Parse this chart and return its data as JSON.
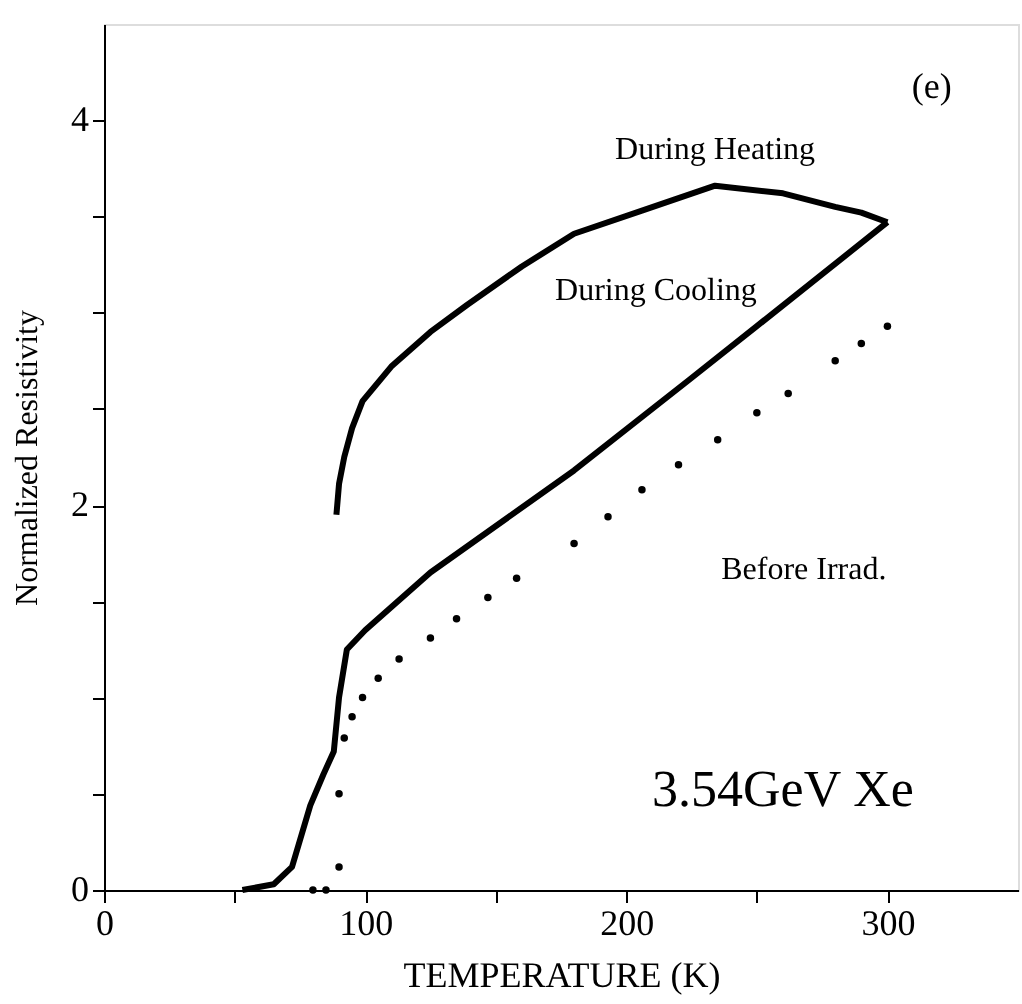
{
  "chart_data": {
    "type": "line",
    "xlabel": "TEMPERATURE (K)",
    "ylabel": "Normalized Resistivity",
    "xlim": [
      0,
      350
    ],
    "xticks": [
      0,
      {
        "value": 50,
        "label": null
      },
      100,
      {
        "value": 150,
        "label": null
      },
      200,
      {
        "value": 250,
        "label": null
      },
      300
    ],
    "ylim": [
      0,
      4.5
    ],
    "yticks": [
      0,
      {
        "value": 0.5,
        "label": null
      },
      {
        "value": 1,
        "label": null
      },
      {
        "value": 1.5,
        "label": null
      },
      2,
      {
        "value": 2.5,
        "label": null
      },
      {
        "value": 3,
        "label": null
      },
      {
        "value": 3.5,
        "label": null
      },
      4
    ],
    "grid": false,
    "annotations": [
      "(e)",
      "3.54GeV Xe"
    ],
    "series": [
      {
        "name": "During Heating",
        "marker": "none",
        "color": "#000000",
        "x": [
          89,
          90,
          92,
          95,
          99,
          110,
          125,
          139,
          160,
          180,
          206,
          234,
          260,
          280,
          290,
          300
        ],
        "values": [
          1.95,
          2.11,
          2.25,
          2.4,
          2.54,
          2.72,
          2.9,
          3.04,
          3.24,
          3.41,
          3.53,
          3.66,
          3.62,
          3.55,
          3.52,
          3.47
        ]
      },
      {
        "name": "During Cooling",
        "marker": "none",
        "color": "#000000",
        "x": [
          300,
          250,
          224,
          180,
          125,
          100,
          93,
          90,
          88,
          84,
          79,
          72,
          65,
          53
        ],
        "values": [
          3.47,
          2.93,
          2.65,
          2.18,
          1.65,
          1.35,
          1.25,
          1.0,
          0.72,
          0.6,
          0.44,
          0.12,
          0.03,
          0
        ]
      },
      {
        "name": "Before Irrad.",
        "type": "scatter",
        "marker": "circle",
        "color": "#000000",
        "x": [
          80,
          85,
          90,
          90,
          92,
          95,
          99,
          105,
          113,
          125,
          135,
          147,
          158,
          180,
          193,
          206,
          220,
          235,
          250,
          262,
          280,
          290,
          300
        ],
        "values": [
          0,
          0,
          0.12,
          0.5,
          0.79,
          0.9,
          1.0,
          1.1,
          1.2,
          1.31,
          1.41,
          1.52,
          1.62,
          1.8,
          1.94,
          2.08,
          2.21,
          2.34,
          2.48,
          2.58,
          2.75,
          2.84,
          2.93
        ]
      }
    ]
  }
}
